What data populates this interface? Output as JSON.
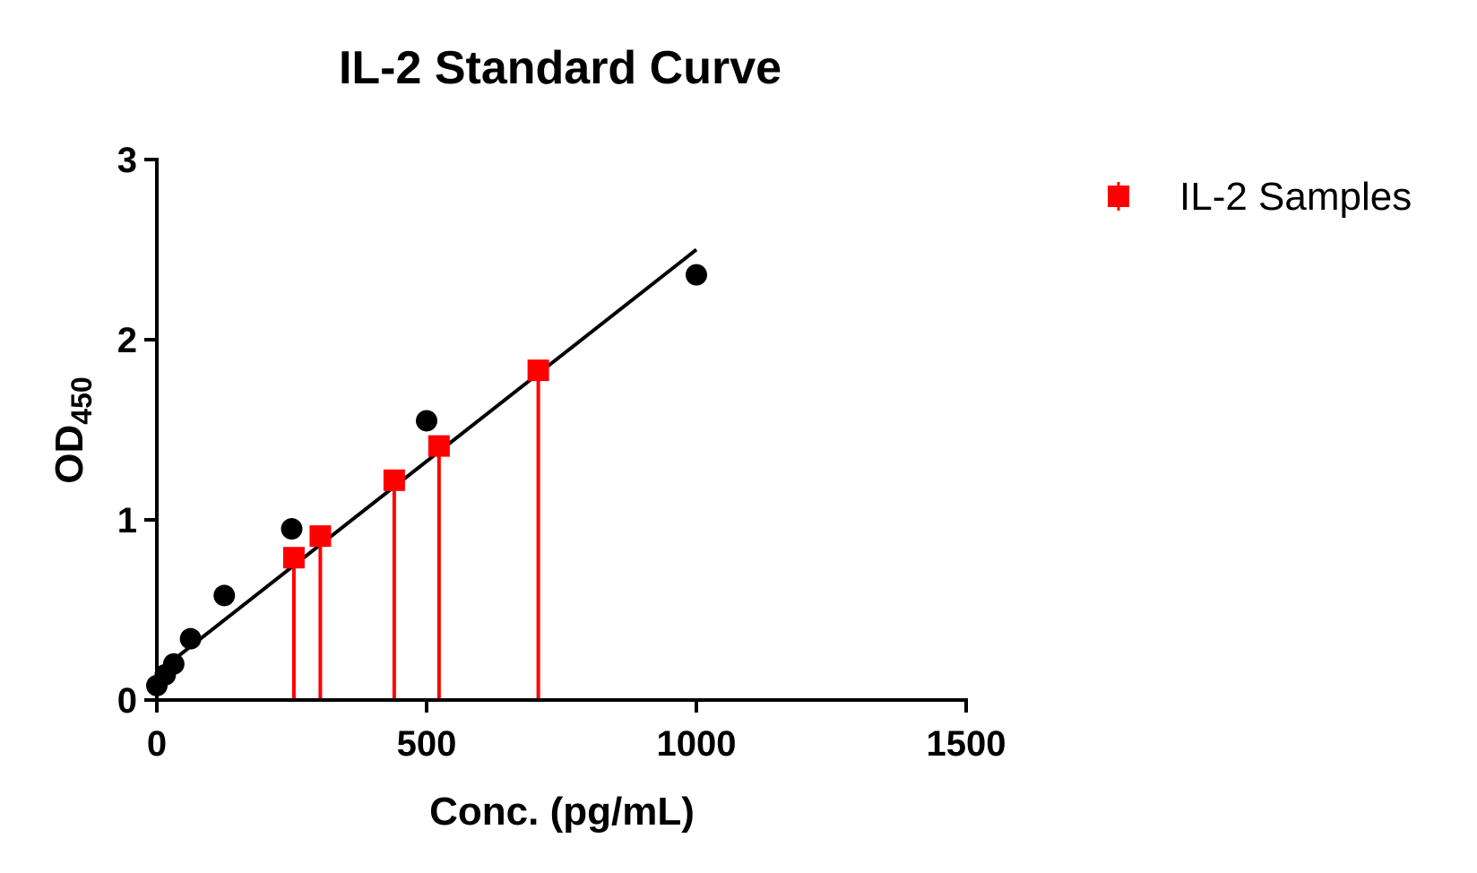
{
  "chart_data": {
    "type": "scatter",
    "title": "IL-2 Standard Curve",
    "xlabel": "Conc. (pg/mL)",
    "ylabel_main": "OD",
    "ylabel_sub": "450",
    "xlim": [
      0,
      1500
    ],
    "ylim": [
      0,
      3
    ],
    "xticks": [
      0,
      500,
      1000,
      1500
    ],
    "yticks": [
      0,
      1,
      2,
      3
    ],
    "grid": false,
    "legend_position": "top-right",
    "standards": {
      "color": "#000000",
      "points": [
        {
          "x": 0,
          "y": 0.08
        },
        {
          "x": 15.6,
          "y": 0.14
        },
        {
          "x": 31.3,
          "y": 0.2
        },
        {
          "x": 62.5,
          "y": 0.34
        },
        {
          "x": 125,
          "y": 0.58
        },
        {
          "x": 250,
          "y": 0.95
        },
        {
          "x": 500,
          "y": 1.55
        },
        {
          "x": 1000,
          "y": 2.36
        }
      ]
    },
    "fit_line": {
      "color": "#000000",
      "x": [
        0,
        1000
      ],
      "y": [
        0.15,
        2.5
      ]
    },
    "samples": {
      "name": "IL-2 Samples",
      "color": "#ff0000",
      "points": [
        {
          "x": 254,
          "y": 0.79
        },
        {
          "x": 303,
          "y": 0.91
        },
        {
          "x": 440,
          "y": 1.22
        },
        {
          "x": 523,
          "y": 1.41
        },
        {
          "x": 707,
          "y": 1.83
        }
      ]
    }
  }
}
